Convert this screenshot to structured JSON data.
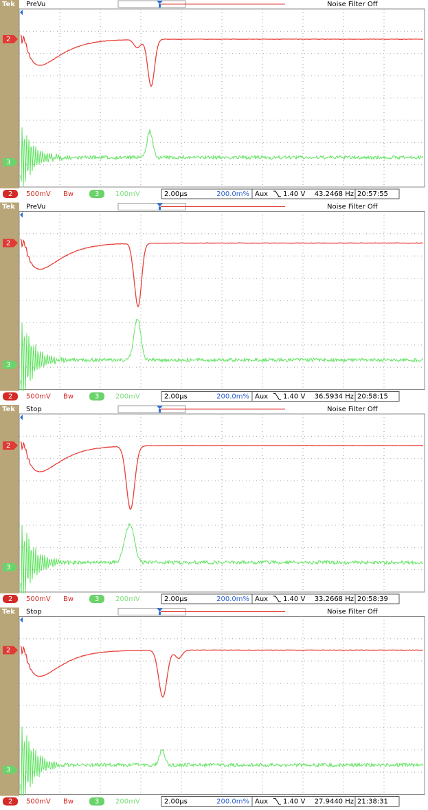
{
  "panels": [
    {
      "logo": "Tek",
      "status": "PreVu",
      "noise_filter": "Noise Filter Off",
      "ch2_marker": "2",
      "ch3_marker": "3",
      "ch2_badge": "2",
      "ch2_scale": "500mV",
      "bandwidth": "Bw",
      "ch3_badge": "3",
      "ch3_scale": "100mV",
      "timebase": "2.00µs",
      "position": "200.0m%",
      "trigger_source": "Aux",
      "trigger_level": "1.40 V",
      "frequency": "43.2468 Hz",
      "clock": "20:57:55"
    },
    {
      "logo": "Tek",
      "status": "PreVu",
      "noise_filter": "Noise Filter Off",
      "ch2_marker": "2",
      "ch3_marker": "3",
      "ch2_badge": "2",
      "ch2_scale": "500mV",
      "bandwidth": "Bw",
      "ch3_badge": "3",
      "ch3_scale": "200mV",
      "timebase": "2.00µs",
      "position": "200.0m%",
      "trigger_source": "Aux",
      "trigger_level": "1.40 V",
      "frequency": "36.5934 Hz",
      "clock": "20:58:15"
    },
    {
      "logo": "Tek",
      "status": "Stop",
      "noise_filter": "Noise Filter Off",
      "ch2_marker": "2",
      "ch3_marker": "3",
      "ch2_badge": "2",
      "ch2_scale": "500mV",
      "bandwidth": "Bw",
      "ch3_badge": "3",
      "ch3_scale": "200mV",
      "timebase": "2.00µs",
      "position": "200.0m%",
      "trigger_source": "Aux",
      "trigger_level": "1.40 V",
      "frequency": "33.2668 Hz",
      "clock": "20:58:39"
    },
    {
      "logo": "Tek",
      "status": "Stop",
      "noise_filter": "Noise Filter Off",
      "ch2_marker": "2",
      "ch3_marker": "3",
      "ch2_badge": "2",
      "ch2_scale": "500mV",
      "bandwidth": "Bw",
      "ch3_badge": "3",
      "ch3_scale": "200mV",
      "timebase": "2.00µs",
      "position": "200.0m%",
      "trigger_source": "Aux",
      "trigger_level": "1.40 V",
      "frequency": "27.9440 Hz",
      "clock": "21:38:31"
    }
  ]
}
